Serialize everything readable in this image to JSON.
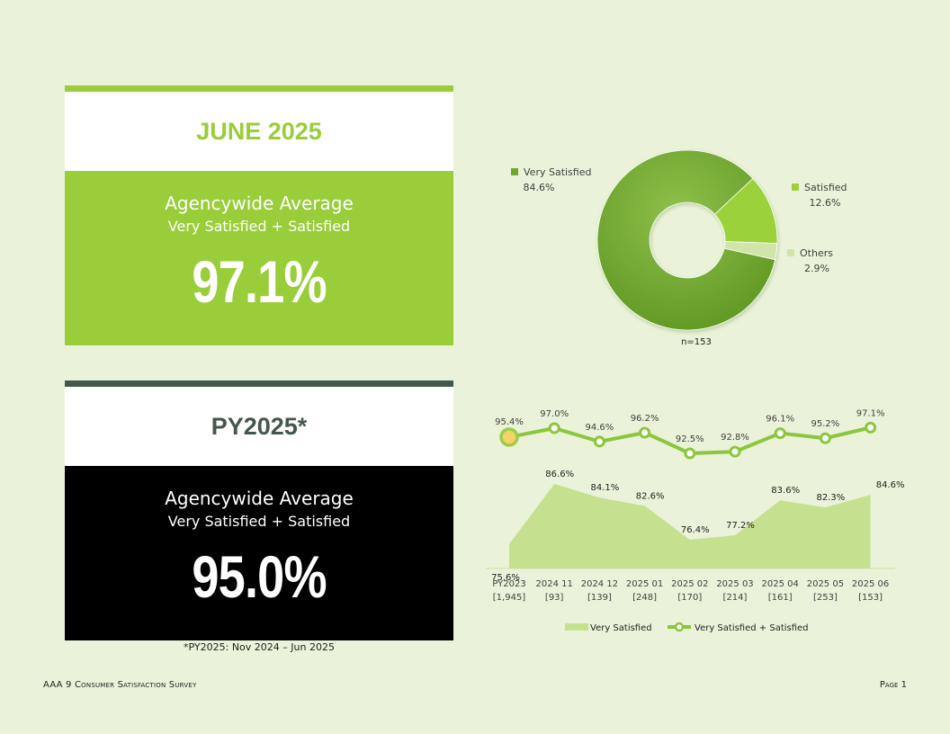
{
  "june_card": {
    "title": "JUNE 2025",
    "heading": "Agencywide Average",
    "subheading": "Very Satisfied + Satisfied",
    "value": "97.1%"
  },
  "py_card": {
    "title": "PY2025*",
    "heading": "Agencywide Average",
    "subheading": "Very Satisfied + Satisfied",
    "value": "95.0%"
  },
  "footnote": "*PY2025: Nov 2024 – Jun 2025",
  "footer": {
    "left": "AAA 9 Consumer Satisfaction Survey",
    "right": "Page 1"
  },
  "colors": {
    "accent_green": "#9acd3a",
    "dark_green": "#43584a",
    "black": "#000000",
    "donut_very_satisfied": "#6ea82e",
    "donut_satisfied": "#9bd23a",
    "donut_others": "#cfe6a8",
    "area_fill": "#c5e08f",
    "line": "#8cc63f"
  },
  "chart_data": [
    {
      "type": "pie",
      "variant": "donut",
      "slices": [
        {
          "label": "Very Satisfied",
          "value": 84.6,
          "value_label": "84.6%"
        },
        {
          "label": "Satisfied",
          "value": 12.6,
          "value_label": "12.6%"
        },
        {
          "label": "Others",
          "value": 2.9,
          "value_label": "2.9%"
        }
      ],
      "note": "n=153"
    },
    {
      "type": "line",
      "categories": [
        "PY2023",
        "2024 11",
        "2024 12",
        "2025 01",
        "2025 02",
        "2025 03",
        "2025 04",
        "2025 05",
        "2025 06"
      ],
      "category_counts": [
        "[1,945]",
        "[93]",
        "[139]",
        "[248]",
        "[170]",
        "[214]",
        "[161]",
        "[253]",
        "[153]"
      ],
      "series": [
        {
          "name": "Very Satisfied",
          "kind": "area",
          "values": [
            75.6,
            86.6,
            84.1,
            82.6,
            76.4,
            77.2,
            83.6,
            82.3,
            84.6
          ],
          "value_labels": [
            "75.6%",
            "86.6%",
            "84.1%",
            "82.6%",
            "76.4%",
            "77.2%",
            "83.6%",
            "82.3%",
            "84.6%"
          ]
        },
        {
          "name": "Very Satisfied + Satisfied",
          "kind": "line",
          "values": [
            95.4,
            97.0,
            94.6,
            96.2,
            92.5,
            92.8,
            96.1,
            95.2,
            97.1
          ],
          "value_labels": [
            "95.4%",
            "97.0%",
            "94.6%",
            "96.2%",
            "92.5%",
            "92.8%",
            "96.1%",
            "95.2%",
            "97.1%"
          ]
        }
      ],
      "legend": "bottom"
    }
  ]
}
